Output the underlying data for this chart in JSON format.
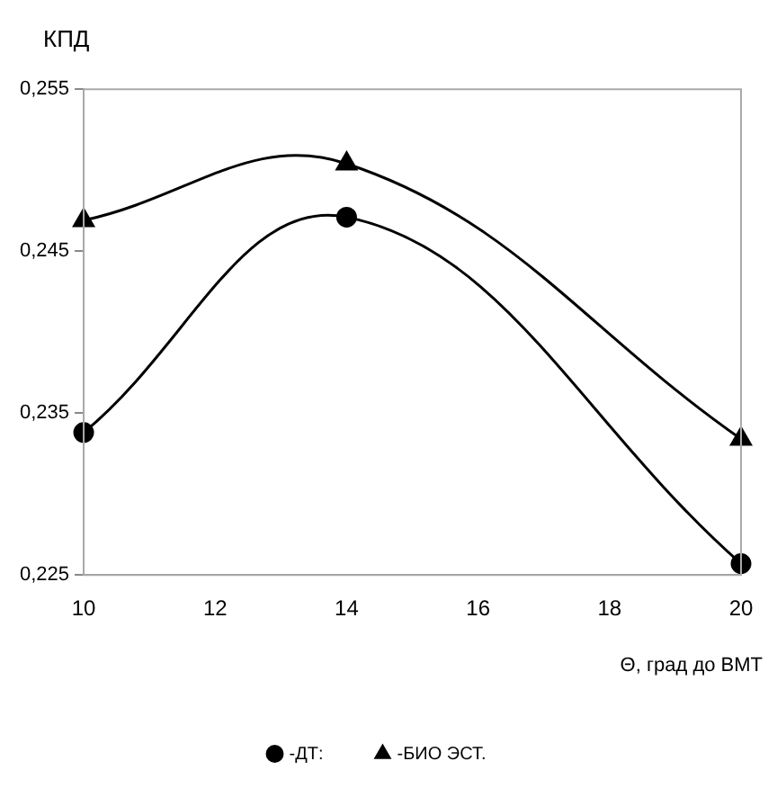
{
  "chart_data": {
    "type": "line",
    "ylabel": "КПД",
    "xlabel": "Θ, град до ВМТ",
    "x": [
      10,
      14,
      20
    ],
    "series": [
      {
        "name": "-ДТ:",
        "color": "#000000",
        "values": [
          0.2338,
          0.2471,
          0.2257
        ],
        "marker": "circle"
      },
      {
        "name": "-БИО ЭСТ.",
        "color": "#000000",
        "values": [
          0.2469,
          0.2504,
          0.2334
        ],
        "marker": "triangle"
      }
    ],
    "xlim": [
      10,
      20
    ],
    "xticks": [
      10,
      12,
      14,
      16,
      18,
      20
    ],
    "ylim": [
      0.225,
      0.255
    ],
    "yticks": [
      {
        "value": 0.225,
        "label": "0,225"
      },
      {
        "value": 0.235,
        "label": "0,235"
      },
      {
        "value": 0.245,
        "label": "0,245"
      },
      {
        "value": 0.255,
        "label": "0,255"
      }
    ],
    "grid": false,
    "legend": "bottom",
    "line_style": "solid"
  }
}
